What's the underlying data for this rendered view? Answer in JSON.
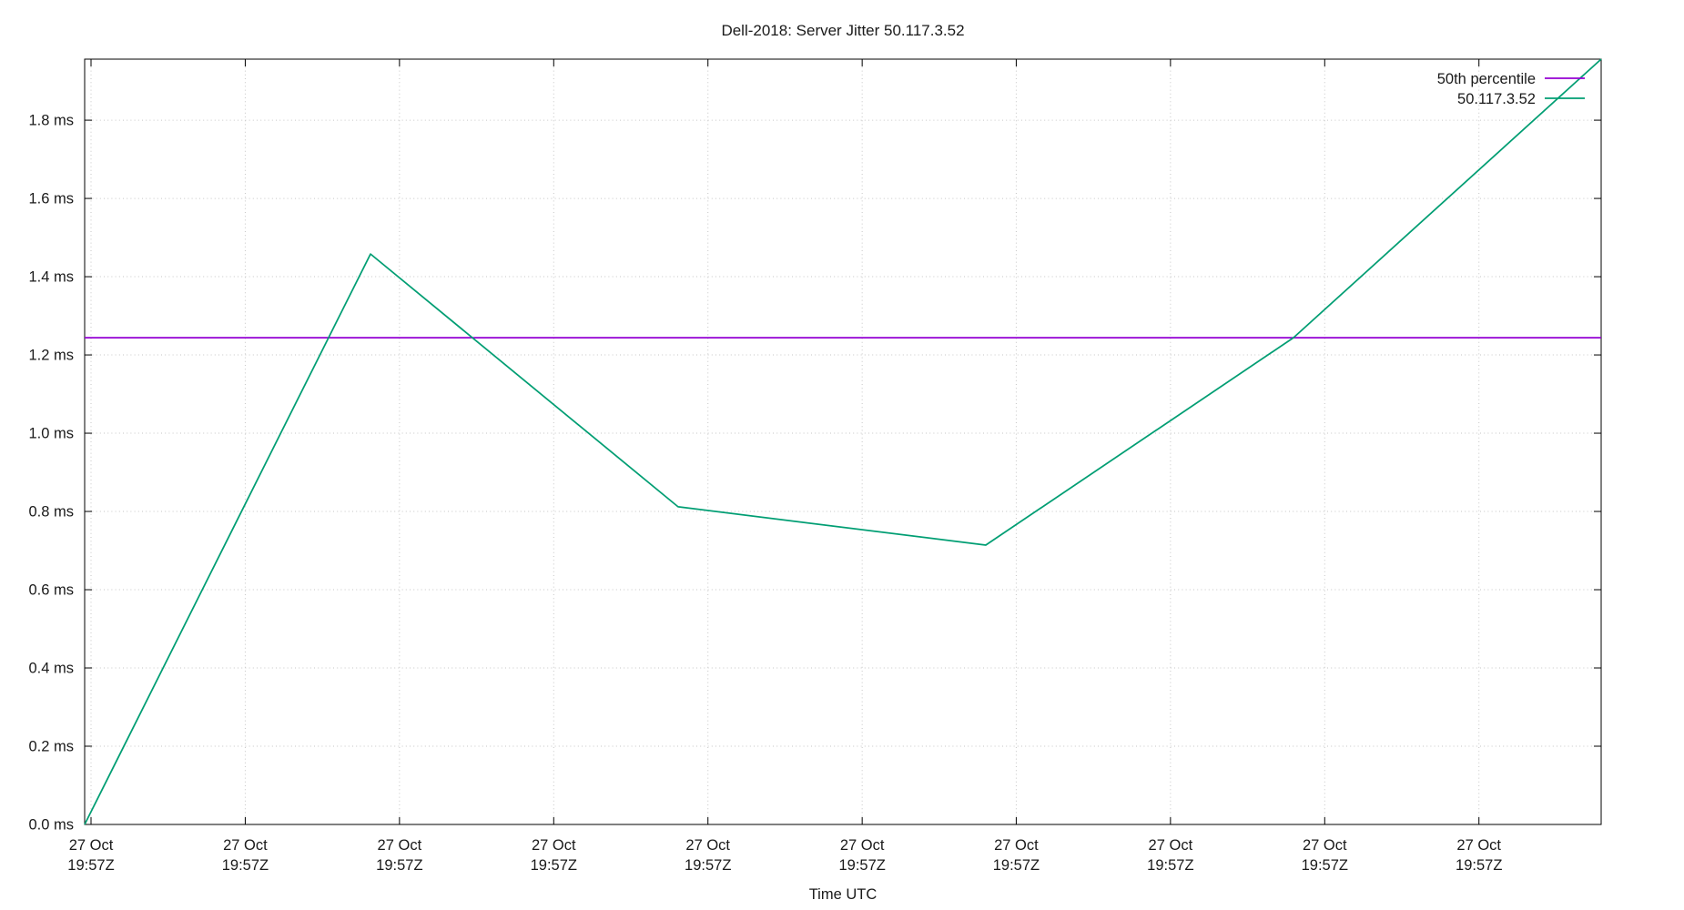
{
  "title": "Dell-2018: Server Jitter 50.117.3.52",
  "chart_data": {
    "type": "line",
    "title": "Dell-2018: Server Jitter 50.117.3.52",
    "xlabel": "Time UTC",
    "ylabel": "",
    "unit": "ms",
    "ylim": [
      0,
      1.956
    ],
    "grid": true,
    "grid_style": "dotted",
    "legend_position": "top-right-inside",
    "x_ticks": {
      "label_line1": "27 Oct",
      "label_line2": "19:57Z",
      "fractions": [
        0.0042,
        0.1059,
        0.2076,
        0.3093,
        0.411,
        0.5127,
        0.6143,
        0.716,
        0.8177,
        0.9194
      ]
    },
    "y_ticks": {
      "values": [
        0.0,
        0.2,
        0.4,
        0.6,
        0.8,
        1.0,
        1.2,
        1.4,
        1.6,
        1.8
      ],
      "labels": [
        "0.0 ms",
        "0.2 ms",
        "0.4 ms",
        "0.6 ms",
        "0.8 ms",
        "1.0 ms",
        "1.2 ms",
        "1.4 ms",
        "1.6 ms",
        "1.8 ms"
      ]
    },
    "series": [
      {
        "name": "50th percentile",
        "color": "#9400d3",
        "style": "hline",
        "value_ms": 1.244
      },
      {
        "name": "50.117.3.52",
        "color": "#009e73",
        "style": "line",
        "points": [
          {
            "x": 0.0,
            "y_ms": 0.0
          },
          {
            "x": 0.1885,
            "y_ms": 1.458
          },
          {
            "x": 0.3913,
            "y_ms": 0.812
          },
          {
            "x": 0.5942,
            "y_ms": 0.714
          },
          {
            "x": 0.7971,
            "y_ms": 1.244
          },
          {
            "x": 1.0,
            "y_ms": 1.956
          }
        ]
      }
    ]
  },
  "colors": {
    "background": "#ffffff",
    "axis": "#000000",
    "grid": "#c6c6c6",
    "text": "#1a1a1a",
    "percentile_line": "#9400d3",
    "series_line": "#009e73"
  }
}
